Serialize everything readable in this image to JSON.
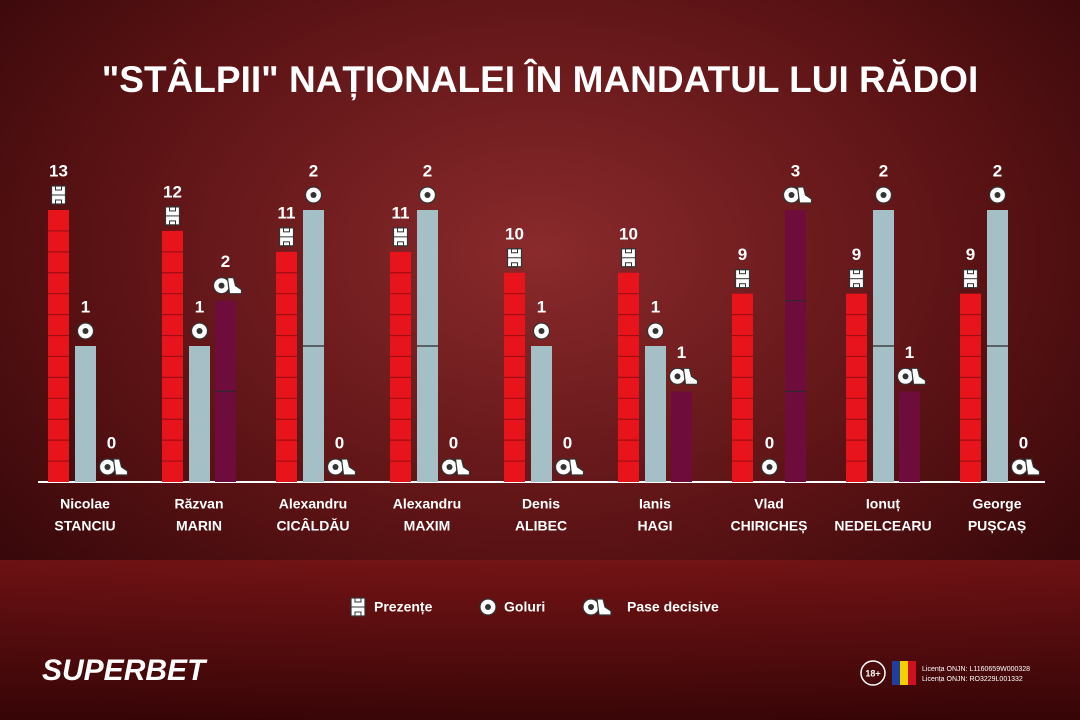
{
  "chart_data": {
    "type": "bar",
    "title": "\"STÂLPII\" NAȚIONALEI ÎN MANDATUL LUI RĂDOI",
    "categories": [
      [
        "Nicolae",
        "STANCIU"
      ],
      [
        "Răzvan",
        "MARIN"
      ],
      [
        "Alexandru",
        "CICÂLDĂU"
      ],
      [
        "Alexandru",
        "MAXIM"
      ],
      [
        "Denis",
        "ALIBEC"
      ],
      [
        "Ianis",
        "HAGI"
      ],
      [
        "Vlad",
        "CHIRICHEȘ"
      ],
      [
        "Ionuț",
        "NEDELCEARU"
      ],
      [
        "George",
        "PUȘCAȘ"
      ]
    ],
    "series": [
      {
        "name": "Prezențe",
        "color": "#e8141c",
        "values": [
          13,
          12,
          11,
          11,
          10,
          10,
          9,
          9,
          9
        ]
      },
      {
        "name": "Goluri",
        "color": "#a4bfc5",
        "values": [
          1,
          1,
          2,
          2,
          1,
          1,
          0,
          2,
          2
        ]
      },
      {
        "name": "Pase decisive",
        "color": "#6e0d3b",
        "values": [
          0,
          2,
          0,
          0,
          0,
          1,
          3,
          1,
          0
        ]
      }
    ]
  },
  "branding": {
    "logo": "SUPERBET",
    "age": "18+",
    "licenses": [
      "Licența ONJN: L1160659W000328",
      "Licența ONJN: RO3229L001332"
    ]
  }
}
